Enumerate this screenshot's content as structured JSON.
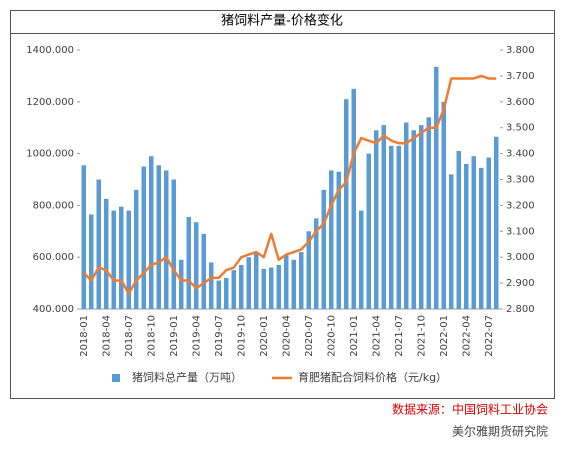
{
  "chart_data": {
    "type": "bar_line",
    "title": "猪饲料产量-价格变化",
    "source": "数据来源：中国饲料工业协会",
    "watermark": "美尔雅期货研究院",
    "categories": [
      "2018-01",
      null,
      null,
      "2018-04",
      null,
      null,
      "2018-07",
      null,
      null,
      "2018-10",
      null,
      null,
      "2019-01",
      null,
      null,
      "2019-04",
      null,
      null,
      "2019-07",
      null,
      null,
      "2019-10",
      null,
      null,
      "2020-01",
      null,
      null,
      "2020-04",
      null,
      null,
      "2020-07",
      null,
      null,
      "2020-10",
      null,
      null,
      "2021-01",
      null,
      null,
      "2021-04",
      null,
      null,
      "2021-07",
      null,
      null,
      "2021-10",
      null,
      null,
      "2022-01",
      null,
      null,
      "2022-04",
      null,
      null,
      "2022-07",
      null
    ],
    "series": [
      {
        "name": "猪饲料总产量（万吨）",
        "type": "bar",
        "color": "#5b9bd5",
        "values": [
          955,
          765,
          900,
          825,
          780,
          795,
          780,
          860,
          950,
          990,
          955,
          935,
          900,
          590,
          755,
          735,
          690,
          580,
          510,
          520,
          550,
          570,
          600,
          620,
          555,
          560,
          570,
          610,
          590,
          620,
          700,
          750,
          860,
          935,
          930,
          1210,
          1250,
          780,
          1000,
          1090,
          1110,
          1030,
          1030,
          1120,
          1090,
          1110,
          1140,
          1335,
          1200,
          920,
          1010,
          960,
          990,
          945,
          985,
          1065
        ]
      },
      {
        "name": "育肥猪配合饲料价格（元/kg）",
        "type": "line",
        "axis": "y2",
        "color": "#ed7d31",
        "values": [
          2.94,
          2.91,
          2.96,
          2.95,
          2.91,
          2.91,
          2.86,
          2.91,
          2.94,
          2.97,
          2.98,
          3.0,
          2.95,
          2.91,
          2.91,
          2.88,
          2.9,
          2.92,
          2.92,
          2.95,
          2.96,
          3.0,
          3.01,
          3.02,
          3.0,
          3.09,
          2.99,
          3.01,
          3.02,
          3.03,
          3.06,
          3.1,
          3.13,
          3.2,
          3.26,
          3.29,
          3.4,
          3.46,
          3.45,
          3.44,
          3.47,
          3.45,
          3.44,
          3.44,
          3.46,
          3.48,
          3.5,
          3.5,
          3.57,
          3.69,
          3.69,
          3.69,
          3.69,
          3.7,
          3.69,
          3.69
        ]
      }
    ],
    "ylim": [
      400,
      1400
    ],
    "yticks": [
      {
        "value": 400,
        "label": "400.000"
      },
      {
        "value": 600,
        "label": "600.000"
      },
      {
        "value": 800,
        "label": "800.000"
      },
      {
        "value": 1000,
        "label": "1000.000"
      },
      {
        "value": 1200,
        "label": "1200.000"
      },
      {
        "value": 1400,
        "label": "1400.000"
      }
    ],
    "y2lim": [
      2.8,
      3.8
    ],
    "y2ticks": [
      {
        "value": 2.8,
        "label": "2.800"
      },
      {
        "value": 2.9,
        "label": "2.900"
      },
      {
        "value": 3.0,
        "label": "3.000"
      },
      {
        "value": 3.1,
        "label": "3.100"
      },
      {
        "value": 3.2,
        "label": "3.200"
      },
      {
        "value": 3.3,
        "label": "3.300"
      },
      {
        "value": 3.4,
        "label": "3.400"
      },
      {
        "value": 3.5,
        "label": "3.500"
      },
      {
        "value": 3.6,
        "label": "3.600"
      },
      {
        "value": 3.7,
        "label": "3.700"
      },
      {
        "value": 3.8,
        "label": "3.800"
      }
    ],
    "grid": false,
    "legend": "bottom"
  }
}
